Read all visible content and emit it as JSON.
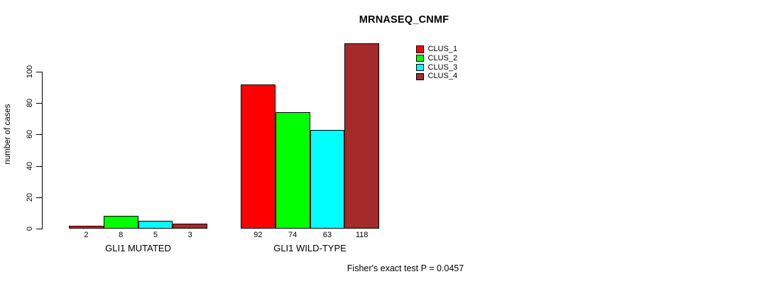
{
  "chart_data": {
    "type": "bar",
    "title": "MRNASEQ_CNMF",
    "ylabel": "number of cases",
    "xlabel": "",
    "categories": [
      "GLI1 MUTATED",
      "GLI1 WILD-TYPE"
    ],
    "series": [
      {
        "name": "CLUS_1",
        "color": "#ff0000",
        "values": [
          2,
          92
        ]
      },
      {
        "name": "CLUS_2",
        "color": "#00ff00",
        "values": [
          8,
          74
        ]
      },
      {
        "name": "CLUS_3",
        "color": "#00ffff",
        "values": [
          5,
          63
        ]
      },
      {
        "name": "CLUS_4",
        "color": "#a52a2a",
        "values": [
          3,
          118
        ]
      }
    ],
    "yticks": [
      0,
      20,
      40,
      60,
      80,
      100
    ],
    "ylim": [
      0,
      120
    ],
    "grid": false,
    "bar_value_labels_shown": true,
    "legend_position": "top-right",
    "annotation": "Fisher's exact test P = 0.0457"
  }
}
